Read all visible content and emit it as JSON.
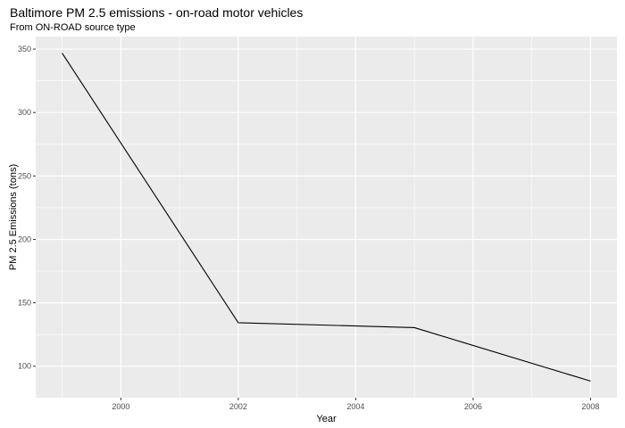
{
  "chart_data": {
    "type": "line",
    "title": "Baltimore PM 2.5 emissions - on-road motor vehicles",
    "subtitle": "From ON-ROAD source type",
    "xlabel": "Year",
    "ylabel": "PM 2.5 Emissions (tons)",
    "x": [
      1999,
      2002,
      2005,
      2008
    ],
    "series": [
      {
        "values": [
          346.82,
          134.31,
          130.43,
          88.28
        ]
      }
    ],
    "xlim": [
      1998.55,
      2008.45
    ],
    "ylim": [
      75.2,
      359.9
    ],
    "xticks": [
      2000,
      2002,
      2004,
      2006,
      2008
    ],
    "yticks": [
      100,
      150,
      200,
      250,
      300,
      350
    ],
    "grid": true,
    "background": "#ebebeb",
    "grid_color": "#ffffff",
    "line_color": "#000000"
  }
}
